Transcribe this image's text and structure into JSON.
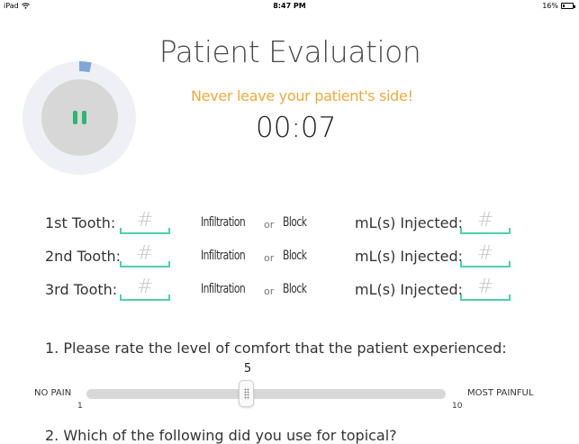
{
  "status_bar": {
    "device": "iPad",
    "time": "8:47 PM",
    "battery": "16%",
    "battery_level": 0.16
  },
  "page_title": "Patient Evaluation",
  "warning": "Never leave your patient's side!",
  "timer": {
    "display": "00:07",
    "progress": 0.035,
    "state": "running"
  },
  "teeth": [
    {
      "label": "1st Tooth:",
      "placeholder": "#",
      "option_a": "Infiltration",
      "or": "or",
      "option_b": "Block",
      "ml_label": "mL(s) Injected:",
      "ml_placeholder": "#"
    },
    {
      "label": "2nd Tooth:",
      "placeholder": "#",
      "option_a": "Infiltration",
      "or": "or",
      "option_b": "Block",
      "ml_label": "mL(s) Injected:",
      "ml_placeholder": "#"
    },
    {
      "label": "3rd Tooth:",
      "placeholder": "#",
      "option_a": "Infiltration",
      "or": "or",
      "option_b": "Block",
      "ml_label": "mL(s) Injected:",
      "ml_placeholder": "#"
    }
  ],
  "question_1": {
    "text": "1. Please rate the level of comfort that the patient experienced:",
    "value": "5",
    "min_label": "NO PAIN",
    "max_label": "MOST PAINFUL",
    "min_value": "1",
    "max_value": "10"
  },
  "question_2": {
    "text": "2. Which of the following did you use for topical?"
  },
  "colors": {
    "accent": "#4fd1a5",
    "warning": "#f0a93b",
    "pause": "#2bb673",
    "progress": "#7fa7d9",
    "ring": "#efeff6"
  },
  "icons": {
    "pause": "pause-icon",
    "wifi": "wifi-icon",
    "battery": "battery-icon",
    "grip": "grip-icon"
  }
}
